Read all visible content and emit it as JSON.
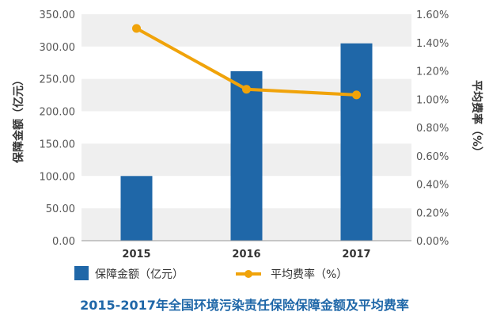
{
  "chart_data": {
    "type": "bar",
    "title": "2015-2017年全国环境污染责任保险保障金额及平均费率",
    "categories": [
      "2015",
      "2016",
      "2017"
    ],
    "ylabel": "保障金额（亿元）",
    "y2label": "平均费率（%）",
    "ylim": [
      0,
      350
    ],
    "y2lim": [
      0,
      1.6
    ],
    "yticks": [
      "0.00",
      "50.00",
      "100.00",
      "150.00",
      "200.00",
      "250.00",
      "300.00",
      "350.00"
    ],
    "y2ticks": [
      "0.00%",
      "0.20%",
      "0.40%",
      "0.60%",
      "0.80%",
      "1.00%",
      "1.20%",
      "1.40%",
      "1.60%"
    ],
    "series": [
      {
        "name": "保障金额（亿元）",
        "type": "bar",
        "axis": "left",
        "color": "#1f67a8",
        "values": [
          100,
          262,
          305
        ]
      },
      {
        "name": "平均费率（%）",
        "type": "line",
        "axis": "right",
        "color": "#f0a30a",
        "values": [
          1.5,
          1.07,
          1.03
        ]
      }
    ],
    "grid": "horizontal bands",
    "legend": "bottom"
  }
}
